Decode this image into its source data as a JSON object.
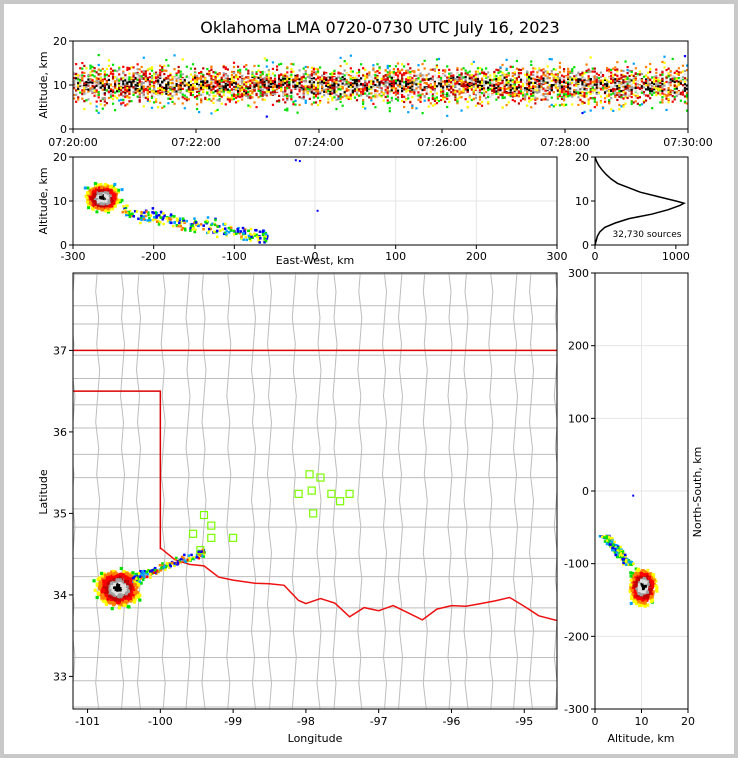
{
  "title": "Oklahoma LMA 0720-0730 UTC July 16, 2023",
  "colors": {
    "state_border": "#dd0000",
    "county_lines": "#bdbdbd",
    "river": "#ee1111",
    "station_marker": "#7cfc00",
    "density_scale": [
      "#0000ff",
      "#00a0ff",
      "#00e000",
      "#ffff00",
      "#ff8000",
      "#ff0000",
      "#c00000",
      "#a0a0a0",
      "#e0e0e0",
      "#000000"
    ]
  },
  "panels": {
    "time_height": {
      "ylabel": "Altitude, km",
      "yticks": [
        "0",
        "10",
        "20"
      ],
      "xticks": [
        "07:20:00",
        "07:22:00",
        "07:24:00",
        "07:26:00",
        "07:28:00",
        "07:30:00"
      ]
    },
    "ew_alt": {
      "ylabel": "Altitude, km",
      "xlabel": "East-West, km",
      "yticks": [
        "0",
        "10",
        "20"
      ],
      "xticks": [
        "-300",
        "-200",
        "-100",
        "0",
        "100",
        "200",
        "300"
      ]
    },
    "hist": {
      "yticks": [
        "0",
        "10",
        "20"
      ],
      "xticks": [
        "0",
        "1000"
      ],
      "annotation": "32,730 sources"
    },
    "map": {
      "xlabel": "Longitude",
      "ylabel": "Latitude",
      "xticks": [
        "-101",
        "-100",
        "-99",
        "-98",
        "-97",
        "-96",
        "-95"
      ],
      "yticks": [
        "33",
        "34",
        "35",
        "36",
        "37"
      ]
    },
    "ns_alt": {
      "xlabel": "Altitude, km",
      "ylabel": "North-South, km",
      "xticks": [
        "0",
        "10",
        "20"
      ],
      "yticks": [
        "300",
        "200",
        "100",
        "0",
        "-100",
        "-200",
        "-300"
      ]
    }
  },
  "chart_data": {
    "type": "scatter",
    "title": "Oklahoma LMA 0720-0730 UTC July 16, 2023",
    "source_count": 32730,
    "time_range": [
      "07:20:00",
      "07:30:00"
    ],
    "altitude_range_km": [
      0,
      20
    ],
    "ew_range_km": [
      -300,
      300
    ],
    "ns_range_km": [
      -300,
      300
    ],
    "lon_range": [
      -101.2,
      -94.55
    ],
    "lat_range": [
      32.6,
      37.95
    ],
    "altitude_histogram": {
      "altitude_km": [
        0,
        2,
        3,
        4,
        5,
        6,
        7,
        8,
        9,
        9.5,
        10,
        11,
        12,
        13,
        14,
        15,
        16,
        17,
        18,
        19,
        20
      ],
      "count": [
        0,
        30,
        60,
        120,
        250,
        420,
        700,
        900,
        1050,
        1100,
        1000,
        780,
        560,
        420,
        280,
        200,
        140,
        90,
        50,
        20,
        0
      ]
    },
    "storm_center": {
      "lon": -100.6,
      "lat": 34.1,
      "ew_km": -270,
      "ns_km": -130,
      "alt_km": 10
    },
    "stations": [
      {
        "lon": -97.95,
        "lat": 35.48
      },
      {
        "lon": -97.8,
        "lat": 35.44
      },
      {
        "lon": -97.92,
        "lat": 35.28
      },
      {
        "lon": -98.1,
        "lat": 35.24
      },
      {
        "lon": -97.65,
        "lat": 35.24
      },
      {
        "lon": -97.4,
        "lat": 35.24
      },
      {
        "lon": -97.53,
        "lat": 35.15
      },
      {
        "lon": -97.9,
        "lat": 35.0
      },
      {
        "lon": -99.4,
        "lat": 34.98
      },
      {
        "lon": -99.3,
        "lat": 34.85
      },
      {
        "lon": -99.55,
        "lat": 34.75
      },
      {
        "lon": -99.3,
        "lat": 34.7
      },
      {
        "lon": -99.0,
        "lat": 34.7
      },
      {
        "lon": -99.45,
        "lat": 34.55
      }
    ]
  }
}
